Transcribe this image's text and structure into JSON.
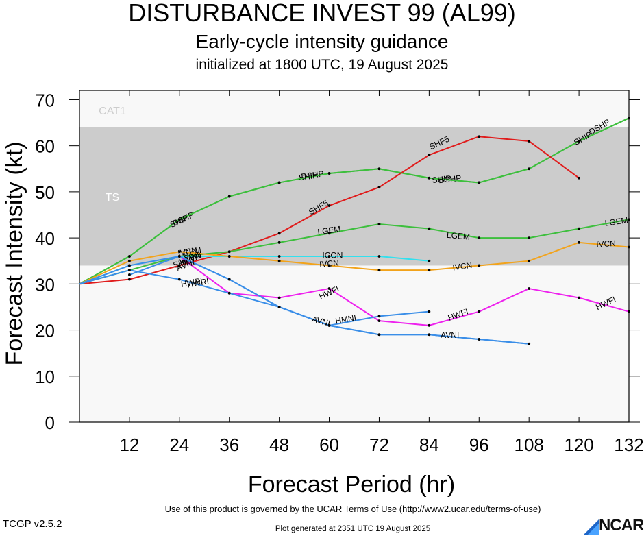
{
  "header": {
    "title": "DISTURBANCE INVEST 99 (AL99)",
    "subtitle": "Early-cycle intensity guidance",
    "init": "initialized at 1800 UTC, 19 August 2025"
  },
  "footer": {
    "terms": "Use of this product is governed by the UCAR Terms of Use (http://www2.ucar.edu/terms-of-use)",
    "version": "TCGP v2.5.2",
    "generated": "Plot generated at 2351 UTC   19 August 2025",
    "logo_text": "NCAR",
    "logo_icon": "ncar-logo-icon"
  },
  "chart_data": {
    "type": "line",
    "title": "DISTURBANCE INVEST 99 (AL99)",
    "xlabel": "Forecast Period (hr)",
    "ylabel": "Forecast Intensity (kt)",
    "xlim": [
      0,
      132
    ],
    "ylim": [
      0,
      72
    ],
    "x_ticks": [
      12,
      24,
      36,
      48,
      60,
      72,
      84,
      96,
      108,
      120,
      132
    ],
    "y_ticks": [
      0,
      10,
      20,
      30,
      40,
      50,
      60,
      70
    ],
    "bands": [
      {
        "name": "TS",
        "from": 34,
        "to": 64,
        "color": "#cccccc"
      },
      {
        "name": "CAT1",
        "from": 64,
        "to": 72,
        "color": "#f8f8f8"
      }
    ],
    "below_band_color": "#f8f8f8",
    "series": [
      {
        "name": "DSHP",
        "color": "#3dbf3d",
        "x": [
          0,
          12,
          24,
          36,
          48,
          60,
          72,
          84,
          96,
          108,
          120,
          132
        ],
        "y": [
          30,
          36,
          44,
          49,
          52,
          54,
          55,
          53,
          52,
          55,
          61,
          66
        ],
        "labels": [
          {
            "x": 25,
            "y": 44,
            "text": "DSHP",
            "rot": -25
          },
          {
            "x": 56,
            "y": 53.5,
            "text": "DSHP",
            "rot": -8
          },
          {
            "x": 89,
            "y": 52.6,
            "text": "DSHP",
            "rot": -6
          },
          {
            "x": 125,
            "y": 64,
            "text": "DSHP",
            "rot": -30
          }
        ]
      },
      {
        "name": "SHIP",
        "color": "#3dbf3d",
        "x": [
          0,
          12,
          24,
          36,
          48,
          60,
          72,
          84,
          96,
          108,
          120,
          132
        ],
        "y": [
          30,
          36,
          44,
          49,
          52,
          54,
          55,
          53,
          52,
          55,
          61,
          66
        ],
        "labels": [
          {
            "x": 24,
            "y": 43.5,
            "text": "SHIP",
            "rot": -25
          },
          {
            "x": 55,
            "y": 53.2,
            "text": "SHIP",
            "rot": -8
          },
          {
            "x": 87,
            "y": 52.6,
            "text": "SHIP",
            "rot": -6
          },
          {
            "x": 121,
            "y": 61.5,
            "text": "SHIP",
            "rot": -30
          }
        ]
      },
      {
        "name": "SHF5",
        "color": "#e01c1c",
        "x": [
          0,
          12,
          24,
          36,
          48,
          60,
          72,
          84,
          96,
          108,
          120
        ],
        "y": [
          30,
          31,
          34,
          37,
          41,
          47,
          51,
          58,
          62,
          61,
          53
        ],
        "labels": [
          {
            "x": 25,
            "y": 34.5,
            "text": "SHF5",
            "rot": -15
          },
          {
            "x": 57.5,
            "y": 46.5,
            "text": "SHF5",
            "rot": -30
          },
          {
            "x": 86.5,
            "y": 60.5,
            "text": "SHF5",
            "rot": -25
          }
        ]
      },
      {
        "name": "LGEM",
        "color": "#3dbf3d",
        "x": [
          0,
          12,
          24,
          36,
          48,
          60,
          72,
          84,
          96,
          108,
          120,
          132
        ],
        "y": [
          30,
          33,
          36,
          37,
          39,
          41,
          43,
          42,
          40,
          40,
          42,
          44
        ],
        "labels": [
          {
            "x": 26.5,
            "y": 36.8,
            "text": "LGEM",
            "rot": -10
          },
          {
            "x": 60,
            "y": 41.5,
            "text": "LGEM",
            "rot": -8
          },
          {
            "x": 91,
            "y": 40.3,
            "text": "LGEM",
            "rot": 5
          },
          {
            "x": 129,
            "y": 43.4,
            "text": "LGEM",
            "rot": -8
          }
        ]
      },
      {
        "name": "ICON",
        "color": "#33e0ee",
        "x": [
          0,
          12,
          24,
          36,
          48,
          60,
          72,
          84
        ],
        "y": [
          30,
          34,
          36,
          36,
          36,
          36,
          36,
          35
        ],
        "labels": [
          {
            "x": 26.8,
            "y": 36.2,
            "text": "ICON",
            "rot": 0
          },
          {
            "x": 60.8,
            "y": 36.1,
            "text": "ICON",
            "rot": 0
          }
        ]
      },
      {
        "name": "IVCN",
        "color": "#f2a31b",
        "x": [
          0,
          12,
          24,
          36,
          48,
          60,
          72,
          84,
          96,
          108,
          120,
          132
        ],
        "y": [
          30,
          35,
          37,
          36,
          35,
          34,
          33,
          33,
          34,
          35,
          39,
          38
        ],
        "labels": [
          {
            "x": 26,
            "y": 36.9,
            "text": "IVCN",
            "rot": -10
          },
          {
            "x": 60,
            "y": 34.3,
            "text": "IVCN",
            "rot": -5
          },
          {
            "x": 92,
            "y": 33.7,
            "text": "IVCN",
            "rot": -8
          },
          {
            "x": 126.5,
            "y": 38.6,
            "text": "IVCN",
            "rot": -3
          }
        ]
      },
      {
        "name": "HWFI",
        "color": "#ee22ee",
        "x": [
          24,
          36,
          48,
          60,
          72,
          84,
          96,
          108,
          120,
          132
        ],
        "y": [
          36,
          28,
          27,
          29,
          22,
          21,
          24,
          29,
          27,
          24
        ],
        "labels": [
          {
            "x": 27,
            "y": 35.3,
            "text": "HWFI",
            "rot": -20
          },
          {
            "x": 60,
            "y": 28,
            "text": "HWFI",
            "rot": -25
          },
          {
            "x": 91,
            "y": 23.2,
            "text": "HWFI",
            "rot": -20
          },
          {
            "x": 126.5,
            "y": 25.7,
            "text": "HWFI",
            "rot": -25
          }
        ]
      },
      {
        "name": "HMNI",
        "color": "#3a8ee8",
        "x": [
          0,
          12,
          24,
          36,
          48,
          60,
          72,
          84
        ],
        "y": [
          30,
          34,
          36,
          31,
          25,
          21,
          23,
          24
        ],
        "labels": [
          {
            "x": 26.5,
            "y": 35.5,
            "text": "HMNI",
            "rot": -25
          },
          {
            "x": 64,
            "y": 22.2,
            "text": "HMNI",
            "rot": -10
          }
        ]
      },
      {
        "name": "HWRI",
        "color": "#3a8ee8",
        "x": [
          0,
          12,
          24,
          36,
          48,
          60,
          72,
          84,
          96,
          108
        ],
        "y": [
          30,
          33,
          31,
          28,
          25,
          21,
          19,
          19,
          18,
          17
        ],
        "labels": [
          {
            "x": 27,
            "y": 30.2,
            "text": "HWRI",
            "rot": -10
          }
        ]
      },
      {
        "name": "AVNI",
        "color": "#3a8ee8",
        "x": [
          12,
          24,
          36,
          48,
          60,
          72,
          84,
          96,
          108
        ],
        "y": [
          32,
          36,
          31,
          25,
          21,
          19,
          19,
          18,
          17
        ],
        "labels": [
          {
            "x": 25.5,
            "y": 34,
            "text": "AVNI",
            "rot": -20
          },
          {
            "x": 28.5,
            "y": 30.1,
            "text": "HWRI",
            "rot": -10
          },
          {
            "x": 58,
            "y": 21.8,
            "text": "AVNI",
            "rot": 15
          },
          {
            "x": 89,
            "y": 18.8,
            "text": "AVNI",
            "rot": 0
          }
        ]
      }
    ]
  }
}
